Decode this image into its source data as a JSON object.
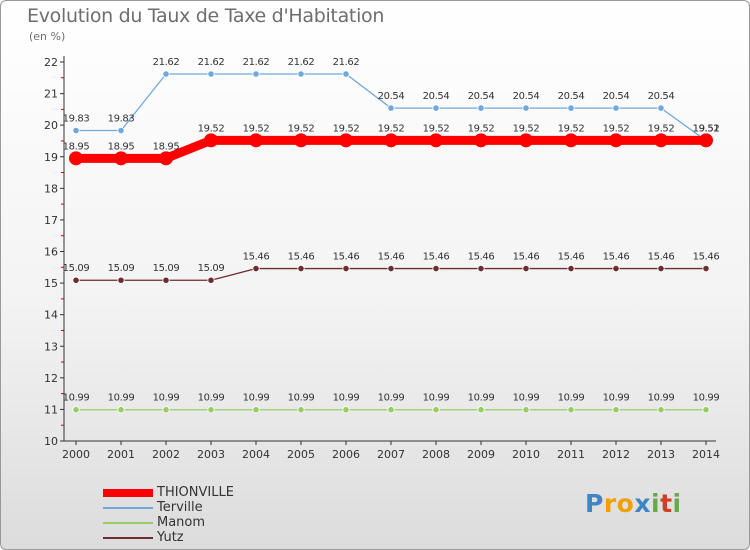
{
  "colors": {
    "THIONVILLE": "#ff0000",
    "Terville": "#6fa8dc",
    "Manom": "#99cc66",
    "Yutz": "#6b2e2e",
    "axis": "#333333",
    "grid_tick": "#cc0000",
    "title": "#6e6e6e"
  },
  "brand": {
    "letters": [
      "P",
      "r",
      "o",
      "x",
      "i",
      "t",
      "i"
    ],
    "letter_colors": [
      "#3d85c6",
      "#f1a000",
      "#f1a000",
      "#3d85c6",
      "#6aa84f",
      "#cc4125",
      "#6aa84f"
    ]
  },
  "chart_data": {
    "type": "line",
    "title": "Evolution du Taux de Taxe d'Habitation",
    "ylabel": "(en %)",
    "xlabel": "",
    "x": [
      "2000",
      "2001",
      "2002",
      "2003",
      "2004",
      "2005",
      "2006",
      "2007",
      "2008",
      "2009",
      "2010",
      "2011",
      "2012",
      "2013",
      "2014"
    ],
    "ylim": [
      10,
      22
    ],
    "yticks": [
      "10",
      "11",
      "12",
      "13",
      "14",
      "15",
      "16",
      "17",
      "18",
      "19",
      "20",
      "21",
      "22"
    ],
    "legend_position": "bottom-left",
    "series": [
      {
        "name": "THIONVILLE",
        "values": [
          18.95,
          18.95,
          18.95,
          19.52,
          19.52,
          19.52,
          19.52,
          19.52,
          19.52,
          19.52,
          19.52,
          19.52,
          19.52,
          19.52,
          19.52
        ],
        "labels": [
          "18.95",
          "18.95",
          "18.95",
          "19.52",
          "19.52",
          "19.52",
          "19.52",
          "19.52",
          "19.52",
          "19.52",
          "19.52",
          "19.52",
          "19.52",
          "19.52",
          "19.52"
        ]
      },
      {
        "name": "Terville",
        "values": [
          19.83,
          19.83,
          21.62,
          21.62,
          21.62,
          21.62,
          21.62,
          20.54,
          20.54,
          20.54,
          20.54,
          20.54,
          20.54,
          20.54,
          19.51
        ],
        "labels": [
          "19.83",
          "19.83",
          "21.62",
          "21.62",
          "21.62",
          "21.62",
          "21.62",
          "20.54",
          "20.54",
          "20.54",
          "20.54",
          "20.54",
          "20.54",
          "20.54",
          "19.51"
        ]
      },
      {
        "name": "Manom",
        "values": [
          10.99,
          10.99,
          10.99,
          10.99,
          10.99,
          10.99,
          10.99,
          10.99,
          10.99,
          10.99,
          10.99,
          10.99,
          10.99,
          10.99,
          10.99
        ],
        "labels": [
          "10.99",
          "10.99",
          "10.99",
          "10.99",
          "10.99",
          "10.99",
          "10.99",
          "10.99",
          "10.99",
          "10.99",
          "10.99",
          "10.99",
          "10.99",
          "10.99",
          "10.99"
        ]
      },
      {
        "name": "Yutz",
        "values": [
          15.09,
          15.09,
          15.09,
          15.09,
          15.46,
          15.46,
          15.46,
          15.46,
          15.46,
          15.46,
          15.46,
          15.46,
          15.46,
          15.46,
          15.46
        ],
        "labels": [
          "15.09",
          "15.09",
          "15.09",
          "15.09",
          "15.46",
          "15.46",
          "15.46",
          "15.46",
          "15.46",
          "15.46",
          "15.46",
          "15.46",
          "15.46",
          "15.46",
          "15.46"
        ]
      }
    ]
  }
}
